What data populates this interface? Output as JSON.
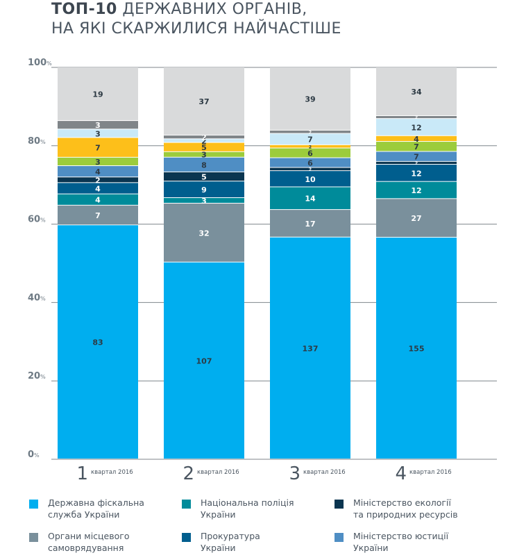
{
  "title": {
    "bold": "ТОП-10",
    "line1_rest": " ДЕРЖАВНИХ ОРГАНІВ,",
    "line2": "НА ЯКІ СКАРЖИЛИСЯ НАЙЧАСТІШЕ"
  },
  "colors": {
    "fiscal": "#00aeef",
    "local": "#7a909c",
    "police": "#008b9a",
    "prosecutor": "#005e8e",
    "ecology": "#0a3550",
    "justice": "#4f8ec4",
    "green": "#9ccc3c",
    "yellow": "#fdbf1a",
    "lightblue": "#c9e9f8",
    "darkgray": "#808589",
    "other": "#d9dadb"
  },
  "chart_data": {
    "type": "bar",
    "stacked": true,
    "normalized": true,
    "categories": [
      "1",
      "2",
      "3",
      "4"
    ],
    "category_suffix": "квартал 2016",
    "y_ticks": [
      "0",
      "20",
      "40",
      "60",
      "80",
      "100"
    ],
    "y_unit": "%",
    "ylim": [
      0,
      100
    ],
    "grid": true,
    "series": [
      {
        "name": "Державна фіскальна служба України",
        "color_key": "fiscal",
        "values": [
          83,
          107,
          137,
          155
        ]
      },
      {
        "name": "Органи місцевого самоврядування",
        "color_key": "local",
        "values": [
          7,
          32,
          17,
          27
        ]
      },
      {
        "name": "Національна поліція України",
        "color_key": "police",
        "values": [
          4,
          3,
          14,
          12
        ]
      },
      {
        "name": "Прокуратура України",
        "color_key": "prosecutor",
        "values": [
          4,
          9,
          10,
          12
        ]
      },
      {
        "name": "Міністерство екології та природних ресурсів",
        "color_key": "ecology",
        "values": [
          2,
          5,
          2,
          2
        ]
      },
      {
        "name": "Міністерство юстиції України",
        "color_key": "justice",
        "values": [
          4,
          8,
          6,
          7
        ]
      },
      {
        "name": "",
        "color_key": "green",
        "values": [
          3,
          3,
          6,
          7
        ]
      },
      {
        "name": "",
        "color_key": "yellow",
        "values": [
          7,
          5,
          2,
          4
        ]
      },
      {
        "name": "",
        "color_key": "lightblue",
        "values": [
          3,
          2,
          7,
          12
        ]
      },
      {
        "name": "",
        "color_key": "darkgray",
        "values": [
          3,
          2,
          2,
          2
        ]
      },
      {
        "name": "",
        "color_key": "other",
        "values": [
          19,
          37,
          39,
          34
        ]
      }
    ]
  },
  "legend": [
    {
      "line1": "Державна фіскальна",
      "line2": "служба України",
      "color_key": "fiscal"
    },
    {
      "line1": "Національна поліція",
      "line2": "України",
      "color_key": "police"
    },
    {
      "line1": "Міністерство екології",
      "line2": "та природних ресурсів",
      "color_key": "ecology"
    },
    {
      "line1": "Органи місцевого",
      "line2": "самоврядування",
      "color_key": "local"
    },
    {
      "line1": "Прокуратура",
      "line2": "України",
      "color_key": "prosecutor"
    },
    {
      "line1": "Міністерство юстиції",
      "line2": "України",
      "color_key": "justice"
    }
  ]
}
